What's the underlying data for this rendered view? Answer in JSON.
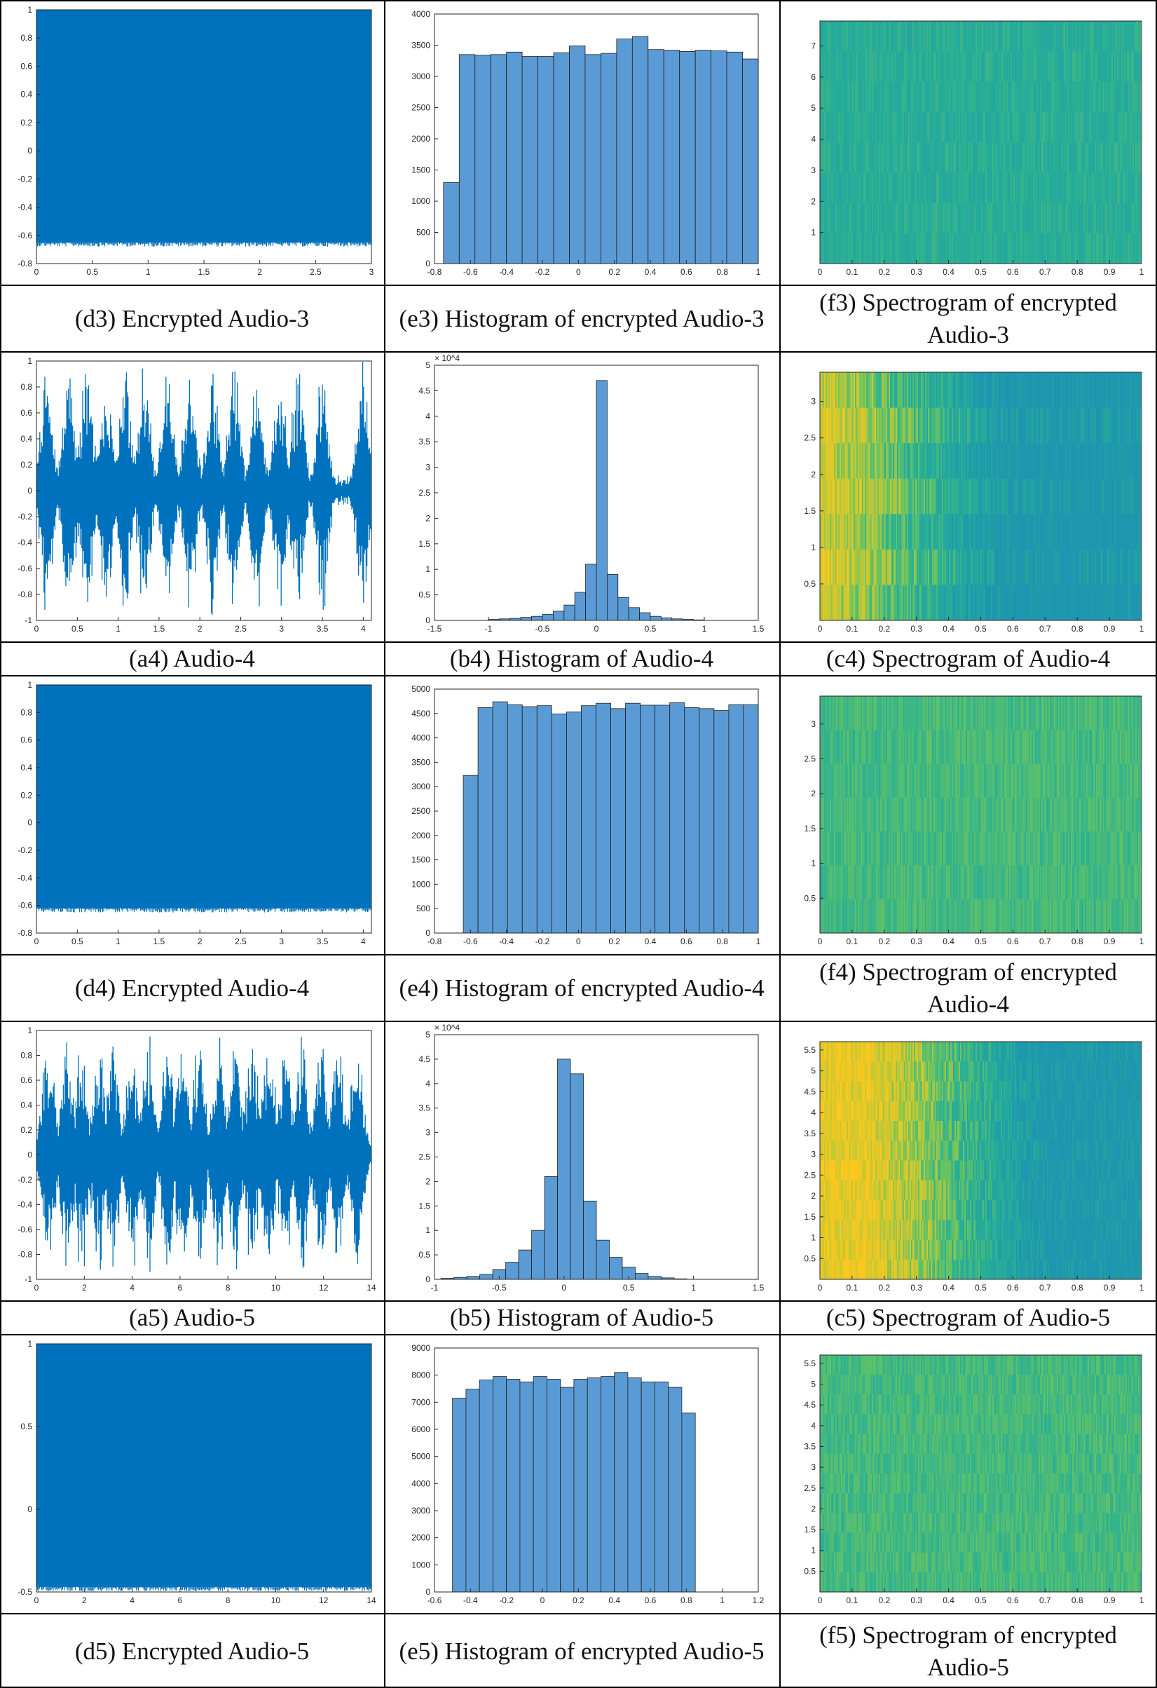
{
  "colors": {
    "signal": "#0072BD",
    "bar": "#5A9BD5",
    "barEdge": "#1f1f1f",
    "specLow": "#1FA3A8",
    "specMid": "#5FBF6F",
    "specHigh": "#F2C521"
  },
  "rows": [
    {
      "kind": "plots",
      "panels": [
        {
          "id": "d3",
          "type": "noise",
          "xticks": [
            "0",
            "0.5",
            "1",
            "1.5",
            "2",
            "2.5",
            "3"
          ],
          "yticks": [
            "-0.8",
            "-0.6",
            "-0.4",
            "-0.2",
            "0",
            "0.2",
            "0.4",
            "0.6",
            "0.8",
            "1"
          ],
          "ylim": [
            -0.8,
            1
          ],
          "xlim": [
            0,
            3
          ],
          "fill": [
            -0.65,
            1
          ]
        },
        {
          "id": "e3",
          "type": "hist",
          "xticks": [
            "-0.8",
            "-0.6",
            "-0.4",
            "-0.2",
            "0",
            "0.2",
            "0.4",
            "0.6",
            "0.8",
            "1"
          ],
          "yticks": [
            "0",
            "500",
            "1000",
            "1500",
            "2000",
            "2500",
            "3000",
            "3500",
            "4000"
          ],
          "exponent": "",
          "xlim": [
            -0.8,
            1
          ],
          "ylim": [
            0,
            4000
          ],
          "binStart": -0.75,
          "binWidth": 0.0875,
          "values": [
            1300,
            3350,
            3340,
            3350,
            3390,
            3320,
            3320,
            3380,
            3490,
            3350,
            3370,
            3600,
            3640,
            3430,
            3420,
            3400,
            3420,
            3410,
            3390,
            3280
          ]
        },
        {
          "id": "f3",
          "type": "spec",
          "xticks": [
            "0",
            "0.1",
            "0.2",
            "0.3",
            "0.4",
            "0.5",
            "0.6",
            "0.7",
            "0.8",
            "0.9",
            "1"
          ],
          "yticks": [
            "1",
            "2",
            "3",
            "4",
            "5",
            "6",
            "7"
          ],
          "ylim": [
            0,
            7.8
          ],
          "bands": 8,
          "profile": "flat"
        }
      ]
    },
    {
      "kind": "captions",
      "labels": [
        "(d3) Encrypted Audio-3",
        "(e3) Histogram of encrypted Audio-3",
        "(f3) Spectrogram of encrypted Audio-3"
      ]
    },
    {
      "kind": "plots",
      "panels": [
        {
          "id": "a4",
          "type": "speech",
          "xticks": [
            "0",
            "0.5",
            "1",
            "1.5",
            "2",
            "2.5",
            "3",
            "3.5",
            "4"
          ],
          "yticks": [
            "-1",
            "-0.8",
            "-0.6",
            "-0.4",
            "-0.2",
            "0",
            "0.2",
            "0.4",
            "0.6",
            "0.8",
            "1"
          ],
          "ylim": [
            -1,
            1
          ],
          "xlim": [
            0,
            4.1
          ],
          "bursts": [
            0.12,
            0.4,
            0.62,
            0.85,
            1.08,
            1.32,
            1.6,
            1.88,
            2.15,
            2.42,
            2.7,
            2.98,
            3.2,
            3.5,
            4.0
          ]
        },
        {
          "id": "b4",
          "type": "hist",
          "xticks": [
            "-1.5",
            "-1",
            "-0.5",
            "0",
            "0.5",
            "1",
            "1.5"
          ],
          "yticks": [
            "0",
            "0.5",
            "1",
            "1.5",
            "2",
            "2.5",
            "3",
            "3.5",
            "4",
            "4.5",
            "5"
          ],
          "exponent": "× 10^4",
          "xlim": [
            -1.5,
            1.5
          ],
          "ylim": [
            0,
            5
          ],
          "binStart": -1.0,
          "binWidth": 0.1,
          "values": [
            0.02,
            0.03,
            0.04,
            0.06,
            0.08,
            0.12,
            0.18,
            0.3,
            0.55,
            1.1,
            4.7,
            0.9,
            0.45,
            0.25,
            0.15,
            0.08,
            0.05,
            0.03,
            0.02,
            0.01
          ]
        },
        {
          "id": "c4",
          "type": "spec",
          "xticks": [
            "0",
            "0.1",
            "0.2",
            "0.3",
            "0.4",
            "0.5",
            "0.6",
            "0.7",
            "0.8",
            "0.9",
            "1"
          ],
          "yticks": [
            "0.5",
            "1",
            "1.5",
            "2",
            "2.5",
            "3"
          ],
          "ylim": [
            0,
            3.4
          ],
          "bands": 7,
          "profile": "speech"
        }
      ]
    },
    {
      "kind": "captions",
      "labels": [
        "(a4) Audio-4",
        "(b4) Histogram of Audio-4",
        "(c4) Spectrogram of Audio-4"
      ]
    },
    {
      "kind": "plots",
      "panels": [
        {
          "id": "d4",
          "type": "noise",
          "xticks": [
            "0",
            "0.5",
            "1",
            "1.5",
            "2",
            "2.5",
            "3",
            "3.5",
            "4"
          ],
          "yticks": [
            "-0.8",
            "-0.6",
            "-0.4",
            "-0.2",
            "0",
            "0.2",
            "0.4",
            "0.6",
            "0.8",
            "1"
          ],
          "ylim": [
            -0.8,
            1
          ],
          "xlim": [
            0,
            4.1
          ],
          "fill": [
            -0.62,
            1
          ]
        },
        {
          "id": "e4",
          "type": "hist",
          "xticks": [
            "-0.8",
            "-0.6",
            "-0.4",
            "-0.2",
            "0",
            "0.2",
            "0.4",
            "0.6",
            "0.8",
            "1"
          ],
          "yticks": [
            "0",
            "500",
            "1000",
            "1500",
            "2000",
            "2500",
            "3000",
            "3500",
            "4000",
            "4500",
            "5000"
          ],
          "exponent": "",
          "xlim": [
            -0.8,
            1
          ],
          "ylim": [
            0,
            5000
          ],
          "binStart": -0.64,
          "binWidth": 0.082,
          "values": [
            3230,
            4620,
            4740,
            4680,
            4640,
            4660,
            4490,
            4530,
            4660,
            4710,
            4600,
            4710,
            4670,
            4670,
            4720,
            4620,
            4600,
            4560,
            4680,
            4680
          ]
        },
        {
          "id": "f4",
          "type": "spec",
          "xticks": [
            "0",
            "0.1",
            "0.2",
            "0.3",
            "0.4",
            "0.5",
            "0.6",
            "0.7",
            "0.8",
            "0.9",
            "1"
          ],
          "yticks": [
            "0.5",
            "1",
            "1.5",
            "2",
            "2.5",
            "3"
          ],
          "ylim": [
            0,
            3.4
          ],
          "bands": 7,
          "profile": "flatGreen"
        }
      ]
    },
    {
      "kind": "captions",
      "labels": [
        "(d4) Encrypted Audio-4",
        "(e4) Histogram of encrypted Audio-4",
        "(f4) Spectrogram of encrypted Audio-4"
      ]
    },
    {
      "kind": "plots",
      "panels": [
        {
          "id": "a5",
          "type": "speech",
          "xticks": [
            "0",
            "2",
            "4",
            "6",
            "8",
            "10",
            "12",
            "14"
          ],
          "yticks": [
            "-1",
            "-0.8",
            "-0.6",
            "-0.4",
            "-0.2",
            "0",
            "0.2",
            "0.4",
            "0.6",
            "0.8",
            "1"
          ],
          "ylim": [
            -1,
            1
          ],
          "xlim": [
            0,
            14
          ],
          "bursts": [
            0.5,
            1.3,
            1.9,
            2.6,
            3.2,
            4.0,
            4.7,
            5.5,
            6.1,
            6.8,
            7.6,
            8.3,
            9.0,
            9.7,
            10.4,
            11.1,
            11.9,
            12.6,
            13.4
          ]
        },
        {
          "id": "b5",
          "type": "hist",
          "xticks": [
            "-1",
            "-0.5",
            "0",
            "0.5",
            "1",
            "1.5"
          ],
          "yticks": [
            "0",
            "0.5",
            "1",
            "1.5",
            "2",
            "2.5",
            "3",
            "3.5",
            "4",
            "4.5",
            "5"
          ],
          "exponent": "× 10^4",
          "xlim": [
            -1,
            1.5
          ],
          "ylim": [
            0,
            5
          ],
          "binStart": -0.95,
          "binWidth": 0.1,
          "values": [
            0.02,
            0.04,
            0.06,
            0.1,
            0.2,
            0.35,
            0.6,
            1.0,
            2.1,
            4.5,
            4.2,
            1.6,
            0.8,
            0.45,
            0.25,
            0.12,
            0.06,
            0.03,
            0.01,
            0.0
          ]
        },
        {
          "id": "c5",
          "type": "spec",
          "xticks": [
            "0",
            "0.1",
            "0.2",
            "0.3",
            "0.4",
            "0.5",
            "0.6",
            "0.7",
            "0.8",
            "0.9",
            "1"
          ],
          "yticks": [
            "0.5",
            "1",
            "1.5",
            "2",
            "2.5",
            "3",
            "3.5",
            "4",
            "4.5",
            "5",
            "5.5"
          ],
          "ylim": [
            0,
            5.7
          ],
          "bands": 12,
          "profile": "speechWide"
        }
      ]
    },
    {
      "kind": "captions",
      "labels": [
        "(a5) Audio-5",
        "(b5) Histogram of Audio-5",
        "(c5) Spectrogram of Audio-5"
      ]
    },
    {
      "kind": "plots",
      "panels": [
        {
          "id": "d5",
          "type": "noise",
          "xticks": [
            "0",
            "2",
            "4",
            "6",
            "8",
            "10",
            "12",
            "14"
          ],
          "yticks": [
            "-0.5",
            "0",
            "0.5",
            "1"
          ],
          "ylim": [
            -0.5,
            1
          ],
          "xlim": [
            0,
            14
          ],
          "fill": [
            -0.47,
            1
          ]
        },
        {
          "id": "e5",
          "type": "hist",
          "xticks": [
            "-0.6",
            "-0.4",
            "-0.2",
            "0",
            "0.2",
            "0.4",
            "0.6",
            "0.8",
            "1",
            "1.2"
          ],
          "yticks": [
            "0",
            "1000",
            "2000",
            "3000",
            "4000",
            "5000",
            "6000",
            "7000",
            "8000",
            "9000"
          ],
          "exponent": "",
          "xlim": [
            -0.6,
            1.2
          ],
          "ylim": [
            0,
            9000
          ],
          "binStart": -0.5,
          "binWidth": 0.075,
          "values": [
            7150,
            7480,
            7820,
            7950,
            7850,
            7750,
            7950,
            7850,
            7550,
            7850,
            7900,
            7950,
            8100,
            7900,
            7750,
            7750,
            7550,
            6600
          ]
        },
        {
          "id": "f5",
          "type": "spec",
          "xticks": [
            "0",
            "0.1",
            "0.2",
            "0.3",
            "0.4",
            "0.5",
            "0.6",
            "0.7",
            "0.8",
            "0.9",
            "1"
          ],
          "yticks": [
            "0.5",
            "1",
            "1.5",
            "2",
            "2.5",
            "3",
            "3.5",
            "4",
            "4.5",
            "5",
            "5.5"
          ],
          "ylim": [
            0,
            5.7
          ],
          "bands": 12,
          "profile": "flatGreen"
        }
      ]
    },
    {
      "kind": "captions",
      "labels": [
        "(d5) Encrypted Audio-5",
        "(e5) Histogram of encrypted Audio-5",
        "(f5) Spectrogram of encrypted Audio-5"
      ]
    }
  ],
  "chart_data": [
    {
      "type": "line",
      "id": "d3",
      "title": "(d3) Encrypted Audio-3",
      "x_range": [
        0,
        3
      ],
      "y_range": [
        -0.8,
        1
      ],
      "description_values": {
        "min": -0.65,
        "max": 1
      }
    },
    {
      "type": "bar",
      "id": "e3",
      "title": "(e3) Histogram of encrypted Audio-3",
      "xlim": [
        -0.8,
        1
      ],
      "ylim": [
        0,
        4000
      ],
      "values": [
        1300,
        3350,
        3340,
        3350,
        3390,
        3320,
        3320,
        3380,
        3490,
        3350,
        3370,
        3600,
        3640,
        3430,
        3420,
        3400,
        3420,
        3410,
        3390,
        3280
      ]
    },
    {
      "type": "heatmap",
      "id": "f3",
      "title": "(f3) Spectrogram of encrypted Audio-3",
      "x_range": [
        0,
        1
      ],
      "y_range": [
        0,
        7.8
      ]
    },
    {
      "type": "line",
      "id": "a4",
      "title": "(a4) Audio-4",
      "x_range": [
        0,
        4.1
      ],
      "y_range": [
        -1,
        1
      ]
    },
    {
      "type": "bar",
      "id": "b4",
      "title": "(b4) Histogram of Audio-4",
      "xlim": [
        -1.5,
        1.5
      ],
      "ylim": [
        0,
        5
      ],
      "y_multiplier": 10000,
      "values": [
        0.02,
        0.03,
        0.04,
        0.06,
        0.08,
        0.12,
        0.18,
        0.3,
        0.55,
        1.1,
        4.7,
        0.9,
        0.45,
        0.25,
        0.15,
        0.08,
        0.05,
        0.03,
        0.02,
        0.01
      ]
    },
    {
      "type": "heatmap",
      "id": "c4",
      "title": "(c4) Spectrogram of Audio-4",
      "x_range": [
        0,
        1
      ],
      "y_range": [
        0,
        3.4
      ]
    },
    {
      "type": "line",
      "id": "d4",
      "title": "(d4) Encrypted Audio-4",
      "x_range": [
        0,
        4.1
      ],
      "y_range": [
        -0.8,
        1
      ]
    },
    {
      "type": "bar",
      "id": "e4",
      "title": "(e4) Histogram of encrypted Audio-4",
      "xlim": [
        -0.8,
        1
      ],
      "ylim": [
        0,
        5000
      ],
      "values": [
        3230,
        4620,
        4740,
        4680,
        4640,
        4660,
        4490,
        4530,
        4660,
        4710,
        4600,
        4710,
        4670,
        4670,
        4720,
        4620,
        4600,
        4560,
        4680,
        4680
      ]
    },
    {
      "type": "heatmap",
      "id": "f4",
      "title": "(f4) Spectrogram of encrypted Audio-4",
      "x_range": [
        0,
        1
      ],
      "y_range": [
        0,
        3.4
      ]
    },
    {
      "type": "line",
      "id": "a5",
      "title": "(a5) Audio-5",
      "x_range": [
        0,
        14
      ],
      "y_range": [
        -1,
        1
      ]
    },
    {
      "type": "bar",
      "id": "b5",
      "title": "(b5) Histogram of Audio-5",
      "xlim": [
        -1,
        1.5
      ],
      "ylim": [
        0,
        5
      ],
      "y_multiplier": 10000,
      "values": [
        0.02,
        0.04,
        0.06,
        0.1,
        0.2,
        0.35,
        0.6,
        1.0,
        2.1,
        4.5,
        4.2,
        1.6,
        0.8,
        0.45,
        0.25,
        0.12,
        0.06,
        0.03,
        0.01,
        0.0
      ]
    },
    {
      "type": "heatmap",
      "id": "c5",
      "title": "(c5) Spectrogram of Audio-5",
      "x_range": [
        0,
        1
      ],
      "y_range": [
        0,
        5.7
      ]
    },
    {
      "type": "line",
      "id": "d5",
      "title": "(d5) Encrypted Audio-5",
      "x_range": [
        0,
        14
      ],
      "y_range": [
        -0.5,
        1
      ]
    },
    {
      "type": "bar",
      "id": "e5",
      "title": "(e5) Histogram of encrypted Audio-5",
      "xlim": [
        -0.6,
        1.2
      ],
      "ylim": [
        0,
        9000
      ],
      "values": [
        7150,
        7480,
        7820,
        7950,
        7850,
        7750,
        7950,
        7850,
        7550,
        7850,
        7900,
        7950,
        8100,
        7900,
        7750,
        7750,
        7550,
        6600
      ]
    },
    {
      "type": "heatmap",
      "id": "f5",
      "title": "(f5) Spectrogram of encrypted Audio-5",
      "x_range": [
        0,
        1
      ],
      "y_range": [
        0,
        5.7
      ]
    }
  ]
}
